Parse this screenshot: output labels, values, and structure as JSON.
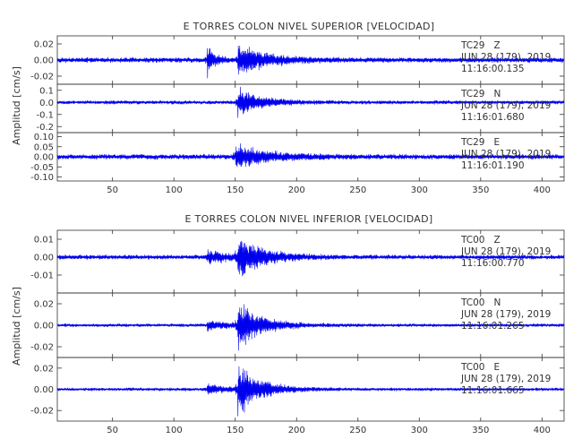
{
  "figure": {
    "background": "#ffffff",
    "trace_color": "#0000ee",
    "axis_color": "#333333"
  },
  "chart_data": [
    {
      "type": "line",
      "title": "E TORRES COLON NIVEL SUPERIOR [VELOCIDAD]",
      "ylabel": "Amplitud [cm/s]",
      "xlabel": "",
      "xlim": [
        5,
        418
      ],
      "xticks": [
        50,
        100,
        150,
        200,
        250,
        300,
        350,
        400
      ],
      "grid": false,
      "series": [
        {
          "name": "TC29 Z",
          "component": "TC29   Z",
          "date": "JUN 28 (179), 2019",
          "time": "11:16:00.135",
          "ylim": [
            -0.03,
            0.03
          ],
          "yticks": [
            -0.02,
            0.0,
            0.02
          ],
          "ytick_labels": [
            "-0.02",
            "0.00",
            "0.02"
          ],
          "noise_amp": 0.0025,
          "onsets": [
            {
              "x": 127,
              "amp": 0.022,
              "decay": 6
            },
            {
              "x": 152,
              "amp": 0.024,
              "decay": 22
            }
          ]
        },
        {
          "name": "TC29 N",
          "component": "TC29   N",
          "date": "JUN 28 (179), 2019",
          "time": "11:16:01.680",
          "ylim": [
            -0.25,
            0.15
          ],
          "yticks": [
            -0.2,
            -0.1,
            0.0,
            0.1
          ],
          "ytick_labels": [
            "-0.2",
            "-0.1",
            "0.0",
            "0.1"
          ],
          "noise_amp": 0.012,
          "onsets": [
            {
              "x": 152,
              "amp": 0.14,
              "decay": 18
            }
          ]
        },
        {
          "name": "TC29 E",
          "component": "TC29   E",
          "date": "JUN 28 (179), 2019",
          "time": "11:16:01.190",
          "ylim": [
            -0.12,
            0.12
          ],
          "yticks": [
            -0.1,
            -0.05,
            0.0,
            0.05,
            0.1
          ],
          "ytick_labels": [
            "-0.10",
            "-0.05",
            "0.00",
            "0.05",
            "0.10"
          ],
          "noise_amp": 0.01,
          "onsets": [
            {
              "x": 150,
              "amp": 0.07,
              "decay": 25
            }
          ]
        }
      ]
    },
    {
      "type": "line",
      "title": "E TORRES COLON NIVEL INFERIOR [VELOCIDAD]",
      "ylabel": "Amplitud [cm/s]",
      "xlabel": "",
      "xlim": [
        5,
        418
      ],
      "xticks": [
        50,
        100,
        150,
        200,
        250,
        300,
        350,
        400
      ],
      "grid": false,
      "series": [
        {
          "name": "TC00 Z",
          "component": "TC00   Z",
          "date": "JUN 28 (179), 2019",
          "time": "11:16:00.770",
          "ylim": [
            -0.02,
            0.015
          ],
          "yticks": [
            -0.01,
            0.0,
            0.01
          ],
          "ytick_labels": [
            "-0.01",
            "0.00",
            "0.01"
          ],
          "noise_amp": 0.001,
          "onsets": [
            {
              "x": 127,
              "amp": 0.004,
              "decay": 20
            },
            {
              "x": 152,
              "amp": 0.013,
              "decay": 20
            }
          ]
        },
        {
          "name": "TC00 N",
          "component": "TC00   N",
          "date": "JUN 28 (179), 2019",
          "time": "11:16:01.265",
          "ylim": [
            -0.03,
            0.03
          ],
          "yticks": [
            -0.02,
            0.0,
            0.02
          ],
          "ytick_labels": [
            "-0.02",
            "0.00",
            "0.02"
          ],
          "noise_amp": 0.0012,
          "onsets": [
            {
              "x": 127,
              "amp": 0.005,
              "decay": 20
            },
            {
              "x": 152,
              "amp": 0.026,
              "decay": 18
            }
          ]
        },
        {
          "name": "TC00 E",
          "component": "TC00   E",
          "date": "JUN 28 (179), 2019",
          "time": "11:16:01.665",
          "ylim": [
            -0.03,
            0.03
          ],
          "yticks": [
            -0.02,
            0.0,
            0.02
          ],
          "ytick_labels": [
            "-0.02",
            "0.00",
            "0.02"
          ],
          "noise_amp": 0.0012,
          "onsets": [
            {
              "x": 127,
              "amp": 0.005,
              "decay": 20
            },
            {
              "x": 152,
              "amp": 0.027,
              "decay": 18
            }
          ]
        }
      ]
    }
  ]
}
